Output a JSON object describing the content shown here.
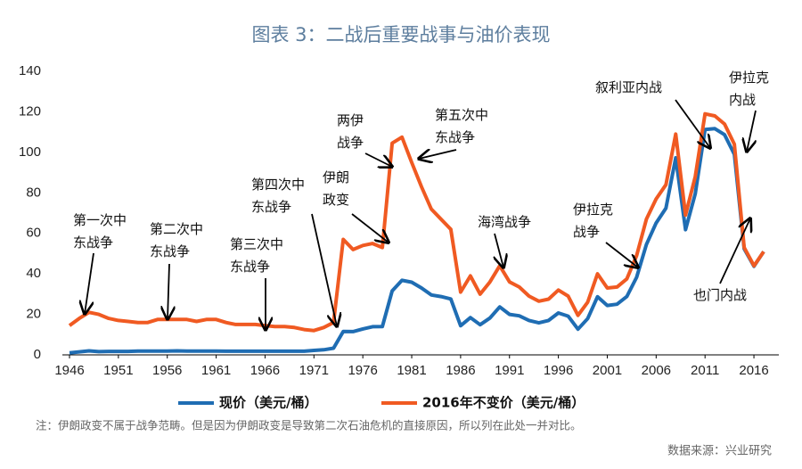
{
  "chart_data": {
    "type": "line",
    "title": "图表 3：二战后重要战事与油价表现",
    "x": [
      1946,
      1947,
      1948,
      1949,
      1950,
      1951,
      1952,
      1953,
      1954,
      1955,
      1956,
      1957,
      1958,
      1959,
      1960,
      1961,
      1962,
      1963,
      1964,
      1965,
      1966,
      1967,
      1968,
      1969,
      1970,
      1971,
      1972,
      1973,
      1974,
      1975,
      1976,
      1977,
      1978,
      1979,
      1980,
      1981,
      1982,
      1983,
      1984,
      1985,
      1986,
      1987,
      1988,
      1989,
      1990,
      1991,
      1992,
      1993,
      1994,
      1995,
      1996,
      1997,
      1998,
      1999,
      2000,
      2001,
      2002,
      2003,
      2004,
      2005,
      2006,
      2007,
      2008,
      2009,
      2010,
      2011,
      2012,
      2013,
      2014,
      2015,
      2016,
      2017
    ],
    "series": [
      {
        "name": "现价（美元/桶）",
        "color": "#1f6db3",
        "values": [
          1.0,
          1.5,
          2.0,
          1.6,
          1.7,
          1.7,
          1.7,
          1.9,
          1.9,
          1.9,
          1.9,
          2.0,
          1.9,
          1.9,
          1.9,
          1.9,
          1.8,
          1.8,
          1.8,
          1.8,
          1.8,
          1.8,
          1.8,
          1.8,
          1.8,
          2.2,
          2.5,
          3.3,
          11.6,
          11.5,
          12.8,
          13.9,
          14.0,
          31.6,
          36.8,
          35.9,
          33.0,
          29.6,
          28.8,
          27.6,
          14.4,
          18.4,
          14.9,
          18.2,
          23.7,
          20.0,
          19.3,
          17.0,
          15.8,
          17.0,
          20.7,
          19.1,
          12.7,
          17.9,
          28.7,
          24.4,
          25.0,
          28.8,
          38.3,
          54.5,
          65.1,
          72.4,
          97.3,
          61.8,
          79.5,
          111.3,
          111.7,
          108.7,
          99.0,
          52.4,
          43.7,
          51
        ]
      },
      {
        "name": "2016年不变价（美元/桶）",
        "color": "#f05a22",
        "values": [
          14.5,
          18,
          21,
          20,
          18,
          17,
          16.5,
          16,
          16,
          17.5,
          17.5,
          17.5,
          17.5,
          16.5,
          17.5,
          17.5,
          16,
          15,
          15,
          15,
          14.5,
          14,
          14,
          13.5,
          12.5,
          12,
          13.5,
          16,
          57,
          52,
          54,
          55,
          53,
          104.5,
          107.5,
          95,
          83,
          72,
          67,
          62,
          31,
          39,
          30,
          36,
          44,
          36,
          33.5,
          29,
          26.5,
          27.5,
          32,
          29,
          19.5,
          26,
          40,
          33,
          33.5,
          37.5,
          49,
          67,
          77,
          84,
          109,
          69,
          88,
          119,
          118,
          114,
          104,
          53,
          44,
          51
        ]
      }
    ],
    "xlim": [
      1946,
      2018
    ],
    "xticks": [
      1946,
      1951,
      1956,
      1961,
      1966,
      1971,
      1976,
      1981,
      1986,
      1991,
      1996,
      2001,
      2006,
      2011,
      2016
    ],
    "ylim": [
      0,
      140
    ],
    "yticks": [
      0,
      20,
      40,
      60,
      80,
      100,
      120,
      140
    ],
    "grid": false,
    "annotations": [
      {
        "text": [
          "第一次中",
          "东战争"
        ]
      },
      {
        "text": [
          "第二次中",
          "东战争"
        ]
      },
      {
        "text": [
          "第三次中",
          "东战争"
        ]
      },
      {
        "text": [
          "第四次中",
          "东战争"
        ]
      },
      {
        "text": [
          "伊朗",
          "政变"
        ]
      },
      {
        "text": [
          "两伊",
          "战争"
        ]
      },
      {
        "text": [
          "第五次中",
          "东战争"
        ]
      },
      {
        "text": [
          "海湾战争"
        ]
      },
      {
        "text": [
          "伊拉克",
          "战争"
        ]
      },
      {
        "text": [
          "叙利亚内战"
        ]
      },
      {
        "text": [
          "伊拉克",
          "内战"
        ]
      },
      {
        "text": [
          "也门内战"
        ]
      }
    ],
    "note": "注：伊朗政变不属于战争范畴。但是因为伊朗政变是导致第二次石油危机的直接原因，所以列在此处一并对比。",
    "source": "数据来源：兴业研究"
  }
}
